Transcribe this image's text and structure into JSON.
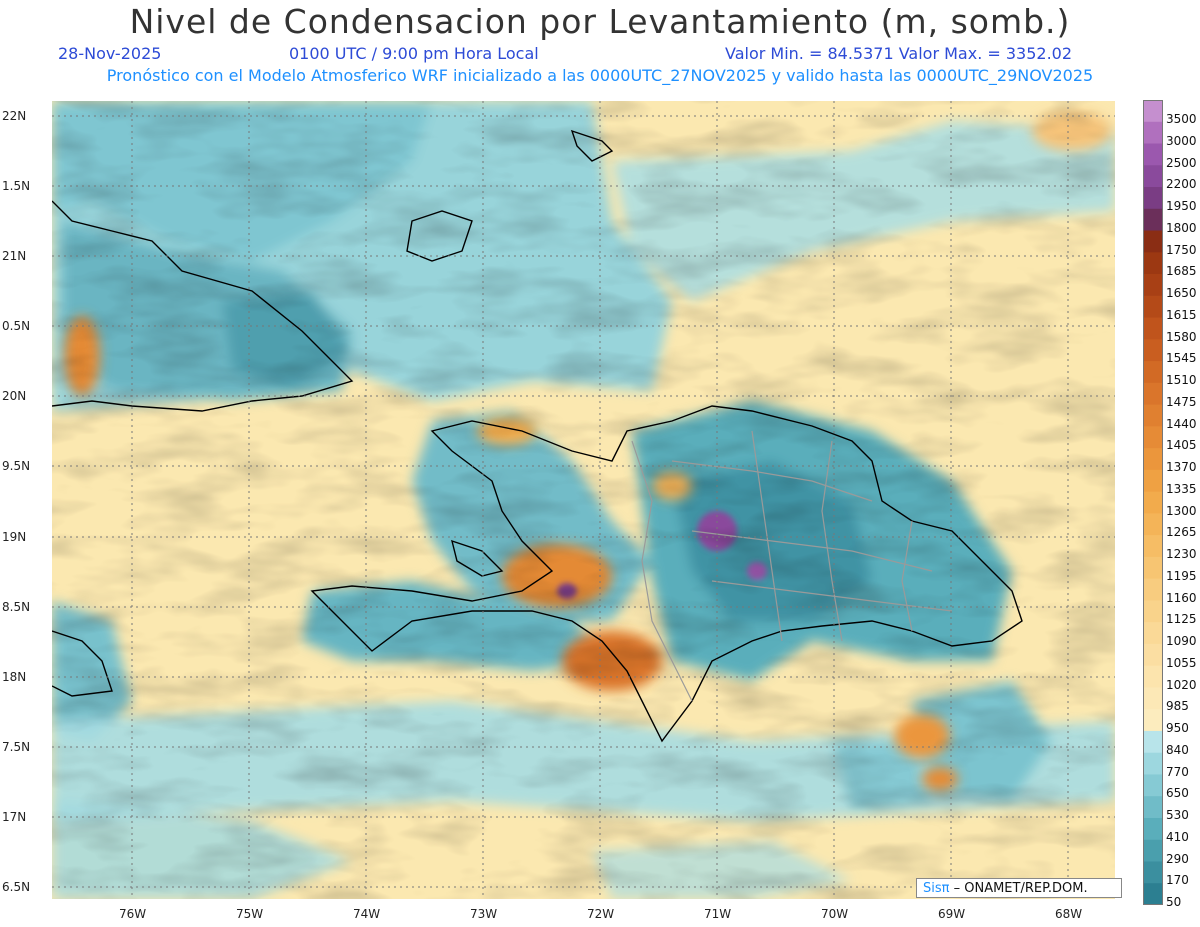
{
  "header": {
    "title": "Nivel de Condensacion por Levantamiento (m, somb.)",
    "date": "28-Nov-2025",
    "time": "0100 UTC / 9:00 pm Hora Local",
    "minmax": "Valor Min. = 84.5371   Valor Max. = 3352.02",
    "subtitle": "Pronóstico con el Modelo Atmosferico WRF inicializado a las 0000UTC_27NOV2025 y valido hasta las  0000UTC_29NOV2025"
  },
  "map": {
    "lat_labels": [
      "22N",
      "1.5N",
      "21N",
      "0.5N",
      "20N",
      "9.5N",
      "19N",
      "8.5N",
      "18N",
      "7.5N",
      "17N",
      "6.5N"
    ],
    "lon_labels": [
      "76W",
      "75W",
      "74W",
      "73W",
      "72W",
      "71W",
      "70W",
      "69W",
      "68W"
    ],
    "colorbar_labels": [
      "3500",
      "3000",
      "2500",
      "2200",
      "1950",
      "1800",
      "1750",
      "1685",
      "1650",
      "1615",
      "1580",
      "1545",
      "1510",
      "1475",
      "1440",
      "1405",
      "1370",
      "1335",
      "1300",
      "1265",
      "1230",
      "1195",
      "1160",
      "1125",
      "1090",
      "1055",
      "1020",
      "985",
      "950",
      "840",
      "770",
      "650",
      "530",
      "410",
      "290",
      "170",
      "50"
    ],
    "colorbar_colors": [
      "#c58fcf",
      "#b070be",
      "#9b58ae",
      "#8a4a9c",
      "#7a3d84",
      "#6b2f5a",
      "#8a2d14",
      "#9c3812",
      "#a84015",
      "#b44a18",
      "#c0541c",
      "#c95e20",
      "#d26a25",
      "#da752b",
      "#e08030",
      "#e68b36",
      "#eb963c",
      "#efa143",
      "#f2ab4c",
      "#f4b458",
      "#f6bd65",
      "#f7c572",
      "#f8cc7f",
      "#f9d38b",
      "#fad997",
      "#fbdea2",
      "#fce4ad",
      "#fce8b6",
      "#fcecbe",
      "#b8e4ea",
      "#9dd7df",
      "#86cad4",
      "#70bcc8",
      "#5aaebb",
      "#4a9fad",
      "#3b8f9f",
      "#2c7f91"
    ],
    "credit_brand": "Sisπ",
    "credit_text": "– ONAMET/REP.DOM."
  }
}
